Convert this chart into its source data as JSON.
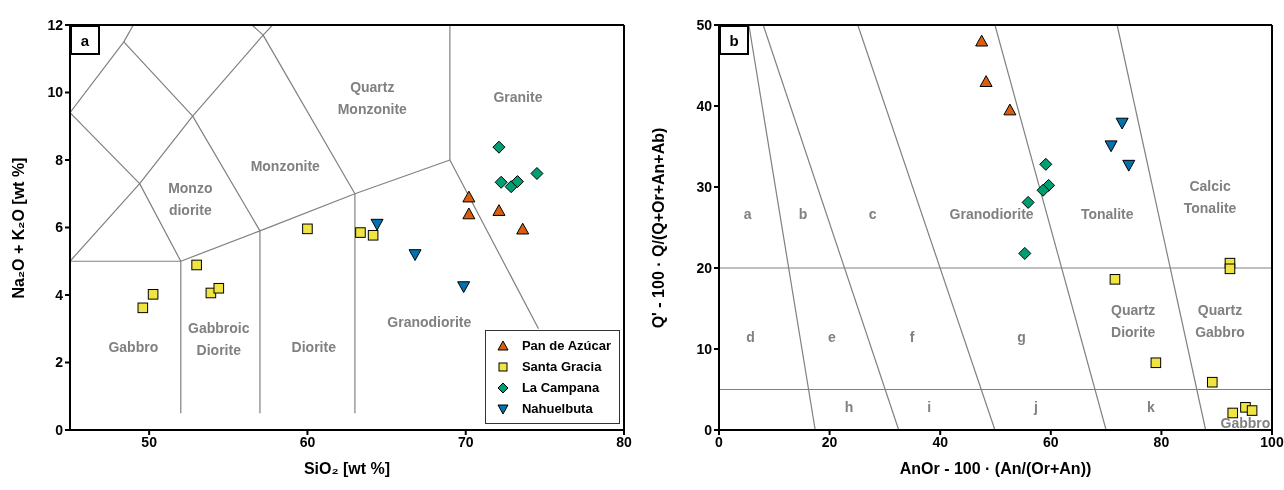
{
  "chart_data": [
    {
      "type": "scatter",
      "title": "a",
      "xlabel": "SiO₂ [wt %]",
      "ylabel": "Na₂O + K₂O [wt %]",
      "xlim": [
        45,
        80
      ],
      "xticks": [
        50,
        60,
        70,
        80
      ],
      "ylim": [
        0,
        12
      ],
      "yticks": [
        0,
        2,
        4,
        6,
        8,
        10,
        12
      ],
      "legend": "bottom right",
      "series": [
        {
          "type": "line",
          "color": "#808080",
          "x": [
            45,
            52
          ],
          "values": [
            5,
            5
          ]
        },
        {
          "type": "line",
          "color": "#808080",
          "x": [
            52,
            52,
            57,
            63,
            69
          ],
          "values": [
            0.5,
            5,
            5.9,
            7,
            8
          ]
        },
        {
          "type": "line",
          "color": "#808080",
          "x": [
            57,
            57
          ],
          "values": [
            0.5,
            5.9
          ]
        },
        {
          "type": "line",
          "color": "#808080",
          "x": [
            63,
            63
          ],
          "values": [
            0.5,
            7
          ]
        },
        {
          "type": "line",
          "color": "#808080",
          "x": [
            69,
            69
          ],
          "values": [
            8,
            12
          ]
        },
        {
          "type": "line",
          "color": "#808080",
          "x": [
            69,
            74.6
          ],
          "values": [
            8,
            3
          ]
        },
        {
          "type": "line",
          "color": "#808080",
          "x": [
            45,
            49.4,
            52
          ],
          "values": [
            5,
            7.3,
            5
          ]
        },
        {
          "type": "line",
          "color": "#808080",
          "x": [
            45,
            49.4,
            52.75,
            57
          ],
          "values": [
            9.4,
            7.3,
            9.3,
            5.9
          ]
        },
        {
          "type": "line",
          "color": "#808080",
          "x": [
            45,
            48.4,
            49
          ],
          "values": [
            9.4,
            11.5,
            12
          ]
        },
        {
          "type": "line",
          "color": "#808080",
          "x": [
            48.4,
            52.75,
            57.2,
            57.8
          ],
          "values": [
            11.5,
            9.3,
            11.7,
            12
          ]
        },
        {
          "type": "line",
          "color": "#808080",
          "x": [
            56.5,
            57.2,
            63
          ],
          "values": [
            12,
            11.7,
            7
          ]
        },
        {
          "name": "Pan de Azúcar",
          "color": "#d95f0e",
          "marker": "triangle",
          "x": [
            70.2,
            70.2,
            72.1,
            73.6
          ],
          "values": [
            6.9,
            6.4,
            6.5,
            5.95
          ]
        },
        {
          "name": "Santa Gracia",
          "color": "#f0e442",
          "marker": "square",
          "x": [
            49.6,
            50.25,
            53.0,
            53.9,
            54.4,
            60.0,
            63.35,
            64.15
          ],
          "values": [
            3.62,
            4.02,
            4.89,
            4.06,
            4.2,
            5.96,
            5.85,
            5.77
          ]
        },
        {
          "name": "La Campana",
          "color": "#009e73",
          "marker": "diamond",
          "x": [
            72.1,
            72.24,
            72.87,
            73.27,
            74.5
          ],
          "values": [
            8.38,
            7.34,
            7.21,
            7.36,
            7.6
          ]
        },
        {
          "name": "Nahuelbuta",
          "color": "#0072b2",
          "marker": "triangle-down",
          "x": [
            64.4,
            66.8,
            69.87
          ],
          "values": [
            6.1,
            5.2,
            4.25
          ]
        }
      ],
      "annotations": [
        "Gabbro",
        "Gabbroic Diorite",
        "Diorite",
        "Granodiorite",
        "Monzo diorite",
        "Monzonite",
        "Quartz Monzonite",
        "Granite"
      ]
    },
    {
      "type": "scatter",
      "title": "b",
      "xlabel": "AnOr - 100 · (An/(Or+An))",
      "ylabel": "Q' - 100 · Q/(Q+Or+An+Ab)",
      "xlim": [
        0,
        100
      ],
      "xticks": [
        0,
        20,
        40,
        60,
        80,
        100
      ],
      "ylim": [
        0,
        50
      ],
      "yticks": [
        0,
        10,
        20,
        30,
        40,
        50
      ],
      "legend": false,
      "series": [
        {
          "type": "line",
          "color": "#808080",
          "x": [
            0,
            100
          ],
          "values": [
            20,
            20
          ]
        },
        {
          "type": "line",
          "color": "#808080",
          "x": [
            0,
            100
          ],
          "values": [
            5,
            5
          ]
        },
        {
          "type": "line",
          "color": "#808080",
          "x": [
            5.4,
            17.4
          ],
          "values": [
            50,
            0
          ]
        },
        {
          "type": "line",
          "color": "#808080",
          "x": [
            8,
            32.5
          ],
          "values": [
            50,
            0
          ]
        },
        {
          "type": "line",
          "color": "#808080",
          "x": [
            25.1,
            49.9
          ],
          "values": [
            50,
            0
          ]
        },
        {
          "type": "line",
          "color": "#808080",
          "x": [
            49.9,
            70
          ],
          "values": [
            50,
            0
          ]
        },
        {
          "type": "line",
          "color": "#808080",
          "x": [
            72,
            88
          ],
          "values": [
            50,
            0
          ]
        },
        {
          "color": "#d95f0e",
          "marker": "triangle",
          "x": [
            47.5,
            48.3,
            52.6
          ],
          "values": [
            48,
            43,
            39.5
          ]
        },
        {
          "color": "#f0e442",
          "marker": "square",
          "x": [
            92.4,
            92.4,
            71.6,
            79.0,
            89.2,
            92.9,
            95.2,
            96.4
          ],
          "values": [
            20.6,
            19.9,
            18.6,
            8.3,
            5.9,
            2.1,
            2.8,
            2.4
          ]
        },
        {
          "color": "#009e73",
          "marker": "diamond",
          "x": [
            59.1,
            59.6,
            58.6,
            55.9,
            55.3
          ],
          "values": [
            32.8,
            30.2,
            29.6,
            28.1,
            21.8
          ]
        },
        {
          "color": "#0072b2",
          "marker": "triangle-down",
          "x": [
            72.9,
            70.9,
            74.1
          ],
          "values": [
            37.9,
            35.1,
            32.7
          ]
        }
      ],
      "annotations": [
        "a",
        "b",
        "c",
        "Granodiorite",
        "Tonalite",
        "Calcic Tonalite",
        "d",
        "e",
        "f",
        "g",
        "Quartz Diorite",
        "Quartz Gabbro",
        "h",
        "i",
        "j",
        "k",
        "Gabbro"
      ]
    }
  ]
}
